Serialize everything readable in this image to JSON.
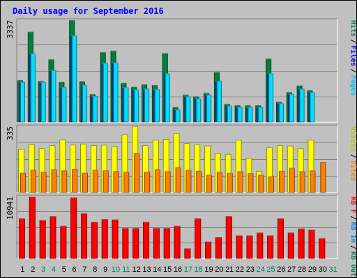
{
  "chart_data": {
    "type": "bar",
    "title": "Daily usage for September 2016",
    "days": [
      "1",
      "2",
      "3",
      "4",
      "5",
      "6",
      "7",
      "8",
      "9",
      "10",
      "11",
      "12",
      "13",
      "14",
      "15",
      "16",
      "17",
      "18",
      "19",
      "20",
      "21",
      "22",
      "23",
      "24",
      "25",
      "26",
      "27",
      "28",
      "29",
      "30",
      "31"
    ],
    "weekend_days": [
      "3",
      "4",
      "10",
      "11",
      "17",
      "18",
      "24",
      "25",
      "31"
    ],
    "colors": {
      "hits": "#008040",
      "files": "#00c0ff",
      "pages": "#00e0ff",
      "visits": "#ffff00",
      "sites": "#ff8000",
      "kbin": "#0080ff",
      "kbout": "#ff0000",
      "weekday_label": "#000000",
      "weekend_label": "#00805c"
    },
    "panels": [
      {
        "id": "hits-files-pages",
        "ymax_label": "3337",
        "ymax": 3337,
        "legend": [
          {
            "text": "Hits",
            "color": "#00805c"
          },
          {
            "text": "Files",
            "color": "#0000ff"
          },
          {
            "text": "Pages",
            "color": "#00c0ff"
          }
        ],
        "series": [
          {
            "name": "Hits",
            "values": [
              1380,
              2960,
              1350,
              2060,
              1320,
              3337,
              1340,
              920,
              2290,
              2340,
              1290,
              1160,
              1240,
              1220,
              2260,
              500,
              900,
              850,
              960,
              1640,
              600,
              560,
              560,
              560,
              2080,
              670,
              990,
              1200,
              1050,
              0,
              0
            ]
          },
          {
            "name": "Files",
            "values": [
              1320,
              2250,
              1320,
              1700,
              1150,
              2830,
              1220,
              860,
              1940,
              1950,
              1140,
              1070,
              1100,
              1080,
              1600,
              420,
              850,
              780,
              900,
              1350,
              540,
              500,
              500,
              500,
              1600,
              620,
              930,
              1100,
              980,
              0,
              0
            ]
          },
          {
            "name": "Pages",
            "values": [
              1320,
              2250,
              1320,
              1700,
              1150,
              2830,
              1220,
              860,
              1940,
              1950,
              1140,
              1070,
              1100,
              1080,
              1600,
              420,
              850,
              780,
              900,
              1350,
              540,
              500,
              500,
              500,
              1600,
              620,
              930,
              1100,
              980,
              0,
              0
            ]
          }
        ]
      },
      {
        "id": "visits-sites",
        "ymax_label": "335",
        "ymax": 335,
        "legend": [
          {
            "text": "Visits",
            "color": "#c0c000"
          },
          {
            "text": "Sites",
            "color": "#ff8000"
          }
        ],
        "series": [
          {
            "name": "Visits",
            "values": [
              220,
              245,
              225,
              240,
              270,
              243,
              248,
              240,
              242,
              235,
              295,
              335,
              240,
              268,
              272,
              300,
              250,
              245,
              238,
              200,
              195,
              268,
              175,
              110,
              230,
              240,
              238,
              225,
              268,
              0,
              0
            ]
          },
          {
            "name": "Sites",
            "values": [
              100,
              115,
              105,
              118,
              112,
              120,
              100,
              115,
              112,
              108,
              105,
              200,
              105,
              118,
              108,
              128,
              115,
              110,
              90,
              105,
              100,
              108,
              98,
              90,
              82,
              110,
              125,
              108,
              112,
              155,
              0
            ]
          }
        ]
      },
      {
        "id": "kbin-kbout",
        "ymax_label": "10941",
        "ymax": 10941,
        "legend": [
          {
            "text": "KB F",
            "color": "#ff0000"
          },
          {
            "text": "KB In",
            "color": "#0080ff"
          },
          {
            "text": "KB Out",
            "color": "#00805c"
          }
        ],
        "series": [
          {
            "name": "KB F",
            "values": [
              7100,
              10941,
              6800,
              7500,
              5800,
              10800,
              8000,
              6500,
              7000,
              6900,
              5400,
              5400,
              6500,
              5400,
              5400,
              5800,
              1800,
              7100,
              3000,
              3800,
              7500,
              4100,
              4100,
              4600,
              4100,
              7100,
              4600,
              5300,
              5100,
              3600,
              0
            ]
          }
        ]
      }
    ]
  }
}
